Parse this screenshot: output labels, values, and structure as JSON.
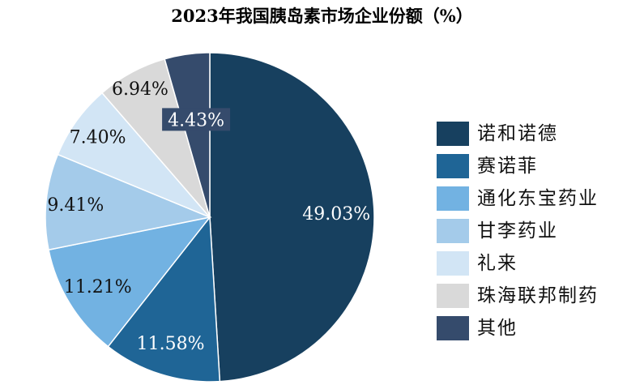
{
  "chart_data": {
    "type": "pie",
    "title": "2023年我国胰岛素市场企业份额（%）",
    "start": "12 o'clock, clockwise",
    "slices": [
      {
        "name": "诺和诺德",
        "value": 49.03,
        "label": "49.03%",
        "color": "#17405f"
      },
      {
        "name": "赛诺菲",
        "value": 11.58,
        "label": "11.58%",
        "color": "#1f6596"
      },
      {
        "name": "通化东宝药业",
        "value": 11.21,
        "label": "11.21%",
        "color": "#72b2e2"
      },
      {
        "name": "甘李药业",
        "value": 9.41,
        "label": "9.41%",
        "color": "#a4cbea"
      },
      {
        "name": "礼来",
        "value": 7.4,
        "label": "7.40%",
        "color": "#d2e5f5"
      },
      {
        "name": "珠海联邦制药",
        "value": 6.94,
        "label": "6.94%",
        "color": "#d9d9d9"
      },
      {
        "name": "其他",
        "value": 4.43,
        "label": "4.43%",
        "color": "#354b6c"
      }
    ],
    "legend": "right"
  }
}
